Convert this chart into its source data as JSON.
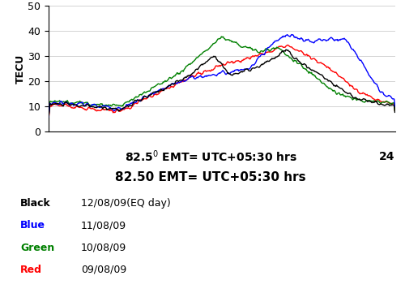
{
  "title_line1": "82.5$^0$ EMT= UTC+05:30 hrs",
  "title_line2": "82.50 EMT= UTC+05:30 hrs",
  "ylabel": "TECU",
  "xlim": [
    0,
    24
  ],
  "ylim": [
    0,
    50
  ],
  "yticks": [
    0,
    10,
    20,
    30,
    40,
    50
  ],
  "legend": [
    {
      "color": "black",
      "label": "Black",
      "date": "12/08/09(EQ day)"
    },
    {
      "color": "blue",
      "label": "Blue",
      "date": "11/08/09"
    },
    {
      "color": "green",
      "label": "Green",
      "date": "10/08/09"
    },
    {
      "color": "red",
      "label": "Red",
      "date": "09/08/09"
    }
  ],
  "line_width": 1.0
}
